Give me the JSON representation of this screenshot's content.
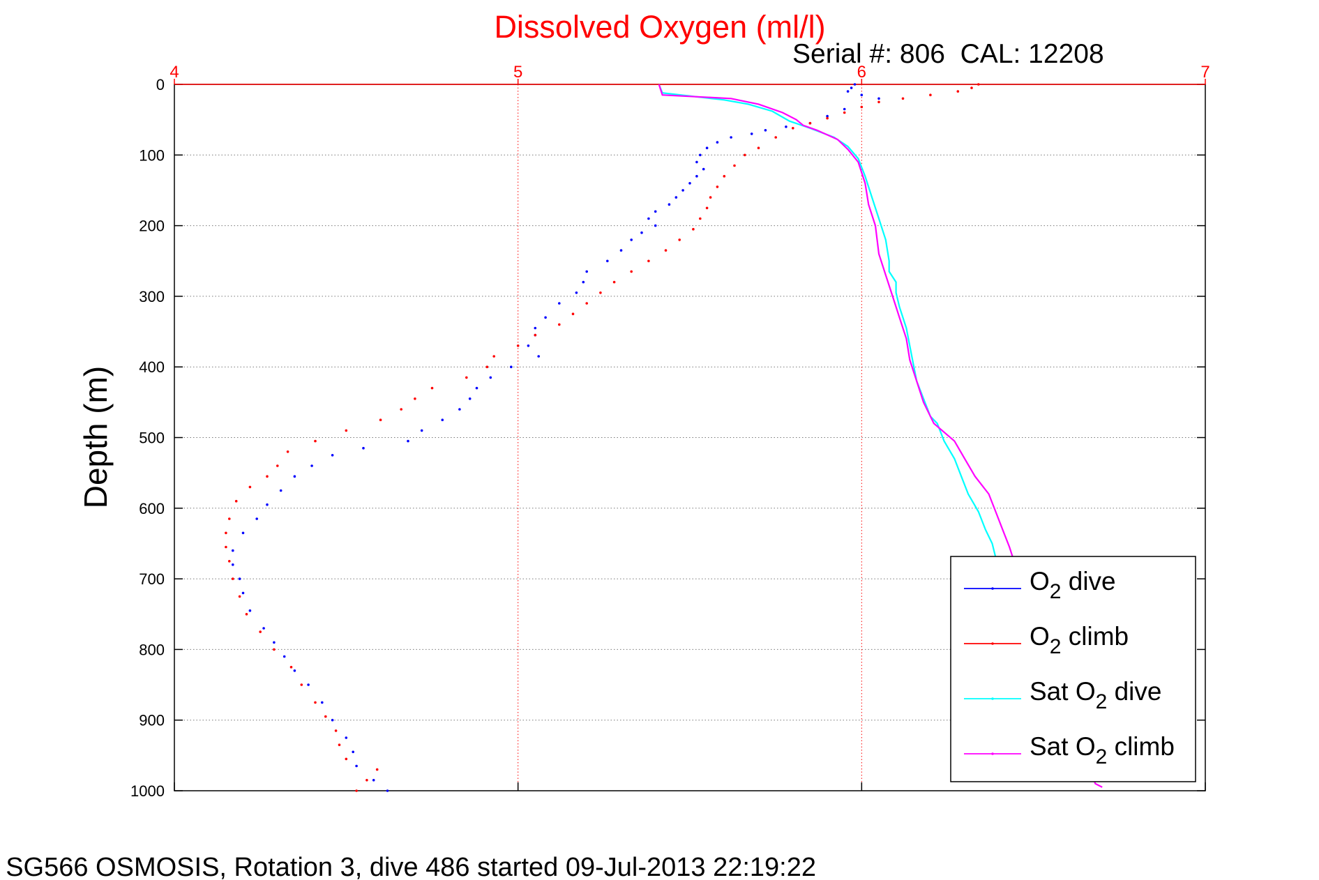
{
  "chart_data": {
    "type": "scatter",
    "title": "Dissolved Oxygen (ml/l)",
    "serial_text": "Serial #: 806  CAL: 12208",
    "footer": "SG566 OSMOSIS, Rotation 3, dive 486 started 09-Jul-2013 22:19:22",
    "ylabel": "Depth (m)",
    "xlabel": "",
    "xlim": [
      4,
      7
    ],
    "ylim": [
      0,
      1000
    ],
    "y_reversed": true,
    "x_axis_position": "top",
    "x_ticks": [
      "4",
      "5",
      "6",
      "7"
    ],
    "y_ticks": [
      "0",
      "100",
      "200",
      "300",
      "400",
      "500",
      "600",
      "700",
      "800",
      "900",
      "1000"
    ],
    "grid": true,
    "legend_position": "bottom-right",
    "colors": {
      "title": "#ff0000",
      "x_axis": "#ff0000",
      "o2_dive": "#0000ff",
      "o2_climb": "#ff0000",
      "sat_dive": "#00ffff",
      "sat_climb": "#ff00ff"
    },
    "legend": [
      {
        "main": "O",
        "sub": "2",
        "rest": " dive",
        "color": "#0000ff"
      },
      {
        "main": "O",
        "sub": "2",
        "rest": " climb",
        "color": "#ff0000"
      },
      {
        "main": "Sat O",
        "sub": "2",
        "rest": " dive",
        "color": "#00ffff"
      },
      {
        "main": "Sat O",
        "sub": "2",
        "rest": " climb",
        "color": "#ff00ff"
      }
    ],
    "series": [
      {
        "name": "O2 dive",
        "style": "dots",
        "color": "#0000ff",
        "points": [
          [
            5.98,
            0
          ],
          [
            5.97,
            5
          ],
          [
            5.96,
            10
          ],
          [
            6.0,
            15
          ],
          [
            6.05,
            20
          ],
          [
            5.95,
            35
          ],
          [
            5.9,
            45
          ],
          [
            5.85,
            55
          ],
          [
            5.78,
            60
          ],
          [
            5.72,
            65
          ],
          [
            5.68,
            70
          ],
          [
            5.62,
            75
          ],
          [
            5.58,
            82
          ],
          [
            5.55,
            90
          ],
          [
            5.53,
            100
          ],
          [
            5.52,
            110
          ],
          [
            5.54,
            120
          ],
          [
            5.52,
            130
          ],
          [
            5.5,
            140
          ],
          [
            5.48,
            150
          ],
          [
            5.46,
            160
          ],
          [
            5.44,
            170
          ],
          [
            5.4,
            180
          ],
          [
            5.38,
            190
          ],
          [
            5.4,
            200
          ],
          [
            5.36,
            210
          ],
          [
            5.33,
            220
          ],
          [
            5.3,
            235
          ],
          [
            5.26,
            250
          ],
          [
            5.2,
            265
          ],
          [
            5.19,
            280
          ],
          [
            5.17,
            295
          ],
          [
            5.12,
            310
          ],
          [
            5.08,
            330
          ],
          [
            5.05,
            345
          ],
          [
            5.05,
            355
          ],
          [
            5.03,
            370
          ],
          [
            5.06,
            385
          ],
          [
            4.98,
            400
          ],
          [
            4.92,
            415
          ],
          [
            4.88,
            430
          ],
          [
            4.86,
            445
          ],
          [
            4.83,
            460
          ],
          [
            4.78,
            475
          ],
          [
            4.72,
            490
          ],
          [
            4.68,
            505
          ],
          [
            4.55,
            515
          ],
          [
            4.46,
            525
          ],
          [
            4.4,
            540
          ],
          [
            4.35,
            555
          ],
          [
            4.31,
            575
          ],
          [
            4.27,
            595
          ],
          [
            4.24,
            615
          ],
          [
            4.2,
            635
          ],
          [
            4.17,
            660
          ],
          [
            4.17,
            680
          ],
          [
            4.19,
            700
          ],
          [
            4.2,
            720
          ],
          [
            4.22,
            745
          ],
          [
            4.26,
            770
          ],
          [
            4.29,
            790
          ],
          [
            4.32,
            810
          ],
          [
            4.35,
            830
          ],
          [
            4.39,
            850
          ],
          [
            4.43,
            875
          ],
          [
            4.46,
            900
          ],
          [
            4.5,
            925
          ],
          [
            4.52,
            945
          ],
          [
            4.53,
            965
          ],
          [
            4.58,
            985
          ],
          [
            4.62,
            1000
          ]
        ]
      },
      {
        "name": "O2 climb",
        "style": "dots",
        "color": "#ff0000",
        "points": [
          [
            4.53,
            1000
          ],
          [
            4.56,
            985
          ],
          [
            4.59,
            970
          ],
          [
            4.5,
            955
          ],
          [
            4.48,
            935
          ],
          [
            4.47,
            915
          ],
          [
            4.44,
            895
          ],
          [
            4.41,
            875
          ],
          [
            4.37,
            850
          ],
          [
            4.34,
            825
          ],
          [
            4.29,
            800
          ],
          [
            4.25,
            775
          ],
          [
            4.21,
            750
          ],
          [
            4.19,
            725
          ],
          [
            4.17,
            700
          ],
          [
            4.16,
            675
          ],
          [
            4.15,
            655
          ],
          [
            4.15,
            635
          ],
          [
            4.16,
            615
          ],
          [
            4.18,
            590
          ],
          [
            4.22,
            570
          ],
          [
            4.27,
            555
          ],
          [
            4.3,
            540
          ],
          [
            4.33,
            520
          ],
          [
            4.41,
            505
          ],
          [
            4.5,
            490
          ],
          [
            4.6,
            475
          ],
          [
            4.66,
            460
          ],
          [
            4.7,
            445
          ],
          [
            4.75,
            430
          ],
          [
            4.85,
            415
          ],
          [
            4.91,
            400
          ],
          [
            4.93,
            385
          ],
          [
            5.0,
            370
          ],
          [
            5.05,
            355
          ],
          [
            5.12,
            340
          ],
          [
            5.16,
            325
          ],
          [
            5.2,
            310
          ],
          [
            5.24,
            295
          ],
          [
            5.28,
            280
          ],
          [
            5.33,
            265
          ],
          [
            5.38,
            250
          ],
          [
            5.43,
            235
          ],
          [
            5.47,
            220
          ],
          [
            5.51,
            205
          ],
          [
            5.53,
            190
          ],
          [
            5.55,
            175
          ],
          [
            5.56,
            160
          ],
          [
            5.58,
            145
          ],
          [
            5.6,
            130
          ],
          [
            5.63,
            115
          ],
          [
            5.66,
            100
          ],
          [
            5.7,
            90
          ],
          [
            5.75,
            75
          ],
          [
            5.8,
            62
          ],
          [
            5.85,
            55
          ],
          [
            5.9,
            48
          ],
          [
            5.95,
            40
          ],
          [
            6.0,
            32
          ],
          [
            6.05,
            25
          ],
          [
            6.12,
            20
          ],
          [
            6.2,
            15
          ],
          [
            6.28,
            10
          ],
          [
            6.32,
            5
          ],
          [
            6.34,
            0
          ]
        ]
      },
      {
        "name": "Sat O2 dive",
        "style": "line",
        "color": "#00ffff",
        "points": [
          [
            5.41,
            0
          ],
          [
            5.42,
            12
          ],
          [
            5.6,
            22
          ],
          [
            5.67,
            28
          ],
          [
            5.74,
            38
          ],
          [
            5.79,
            52
          ],
          [
            5.85,
            62
          ],
          [
            5.92,
            75
          ],
          [
            5.96,
            88
          ],
          [
            5.99,
            105
          ],
          [
            6.01,
            130
          ],
          [
            6.03,
            160
          ],
          [
            6.05,
            190
          ],
          [
            6.07,
            220
          ],
          [
            6.08,
            250
          ],
          [
            6.08,
            265
          ],
          [
            6.1,
            280
          ],
          [
            6.1,
            295
          ],
          [
            6.11,
            315
          ],
          [
            6.13,
            345
          ],
          [
            6.14,
            370
          ],
          [
            6.15,
            395
          ],
          [
            6.16,
            420
          ],
          [
            6.18,
            445
          ],
          [
            6.2,
            470
          ],
          [
            6.22,
            480
          ],
          [
            6.24,
            505
          ],
          [
            6.27,
            530
          ],
          [
            6.29,
            555
          ],
          [
            6.31,
            580
          ],
          [
            6.34,
            605
          ],
          [
            6.36,
            630
          ],
          [
            6.38,
            650
          ],
          [
            6.39,
            670
          ]
        ]
      },
      {
        "name": "Sat O2 climb",
        "style": "line",
        "color": "#ff00ff",
        "points": [
          [
            5.41,
            0
          ],
          [
            5.42,
            15
          ],
          [
            5.62,
            20
          ],
          [
            5.7,
            28
          ],
          [
            5.77,
            40
          ],
          [
            5.81,
            50
          ],
          [
            5.83,
            58
          ],
          [
            5.87,
            65
          ],
          [
            5.93,
            78
          ],
          [
            5.96,
            92
          ],
          [
            5.99,
            110
          ],
          [
            6.01,
            140
          ],
          [
            6.02,
            170
          ],
          [
            6.04,
            200
          ],
          [
            6.05,
            240
          ],
          [
            6.07,
            270
          ],
          [
            6.09,
            300
          ],
          [
            6.11,
            330
          ],
          [
            6.13,
            360
          ],
          [
            6.14,
            390
          ],
          [
            6.16,
            420
          ],
          [
            6.18,
            450
          ],
          [
            6.21,
            480
          ],
          [
            6.27,
            505
          ],
          [
            6.3,
            530
          ],
          [
            6.33,
            555
          ],
          [
            6.37,
            580
          ],
          [
            6.39,
            605
          ],
          [
            6.41,
            630
          ],
          [
            6.43,
            655
          ],
          [
            6.44,
            670
          ],
          [
            6.68,
            990
          ],
          [
            6.7,
            995
          ]
        ]
      }
    ]
  }
}
